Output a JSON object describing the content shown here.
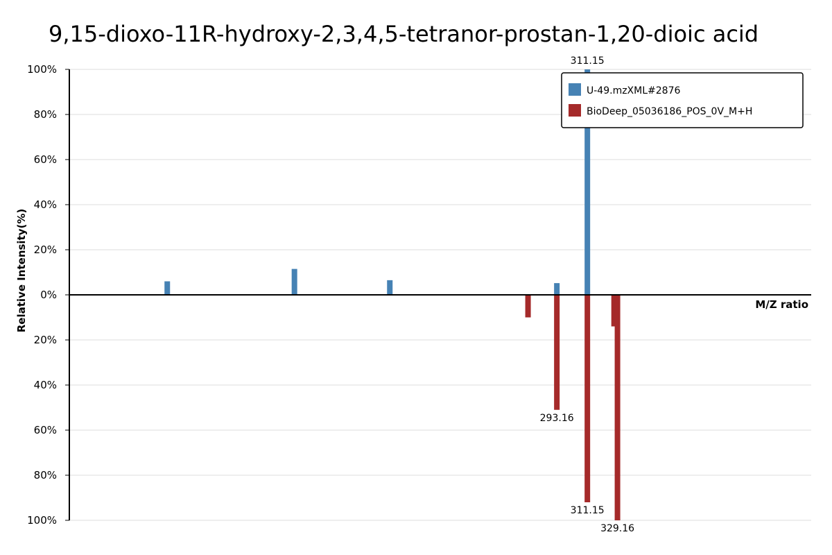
{
  "chart_data": {
    "type": "bar",
    "title": "9,15-dioxo-11R-hydroxy-2,3,4,5-tetranor-prostan-1,20-dioic  acid",
    "xlabel": "M/Z ratio",
    "ylabel": "Relative Intensity(%)",
    "xlim": [
      180,
      355
    ],
    "ylim_top": [
      0,
      100
    ],
    "ylim_bottom": [
      0,
      100
    ],
    "ytick_labels": [
      "100%",
      "80%",
      "60%",
      "40%",
      "20%",
      "0%",
      "20%",
      "40%",
      "60%",
      "80%",
      "100%"
    ],
    "grid": true,
    "legend_position": "top-right",
    "series": [
      {
        "name": "U-49.mzXML#2876",
        "color": "#4682b4",
        "direction": "up",
        "x": [
          203.1,
          233.1,
          255.6,
          295.0,
          302.2
        ],
        "values": [
          6,
          11.5,
          6.5,
          5.2,
          100
        ]
      },
      {
        "name": "BioDeep_05036186_POS_0V_M+H",
        "color": "#a52a2a",
        "direction": "down",
        "x": [
          288.2,
          295.0,
          302.2,
          308.5,
          309.3
        ],
        "values": [
          10,
          51,
          92,
          14,
          100
        ]
      }
    ],
    "peak_labels": [
      {
        "text": "311.15",
        "x": 302.2,
        "series": "U-49.mzXML#2876"
      },
      {
        "text": "293.16",
        "x": 295.0,
        "series": "BioDeep_05036186_POS_0V_M+H"
      },
      {
        "text": "311.15",
        "x": 302.2,
        "series": "BioDeep_05036186_POS_0V_M+H"
      },
      {
        "text": "329.16",
        "x": 309.3,
        "series": "BioDeep_05036186_POS_0V_M+H"
      }
    ]
  }
}
